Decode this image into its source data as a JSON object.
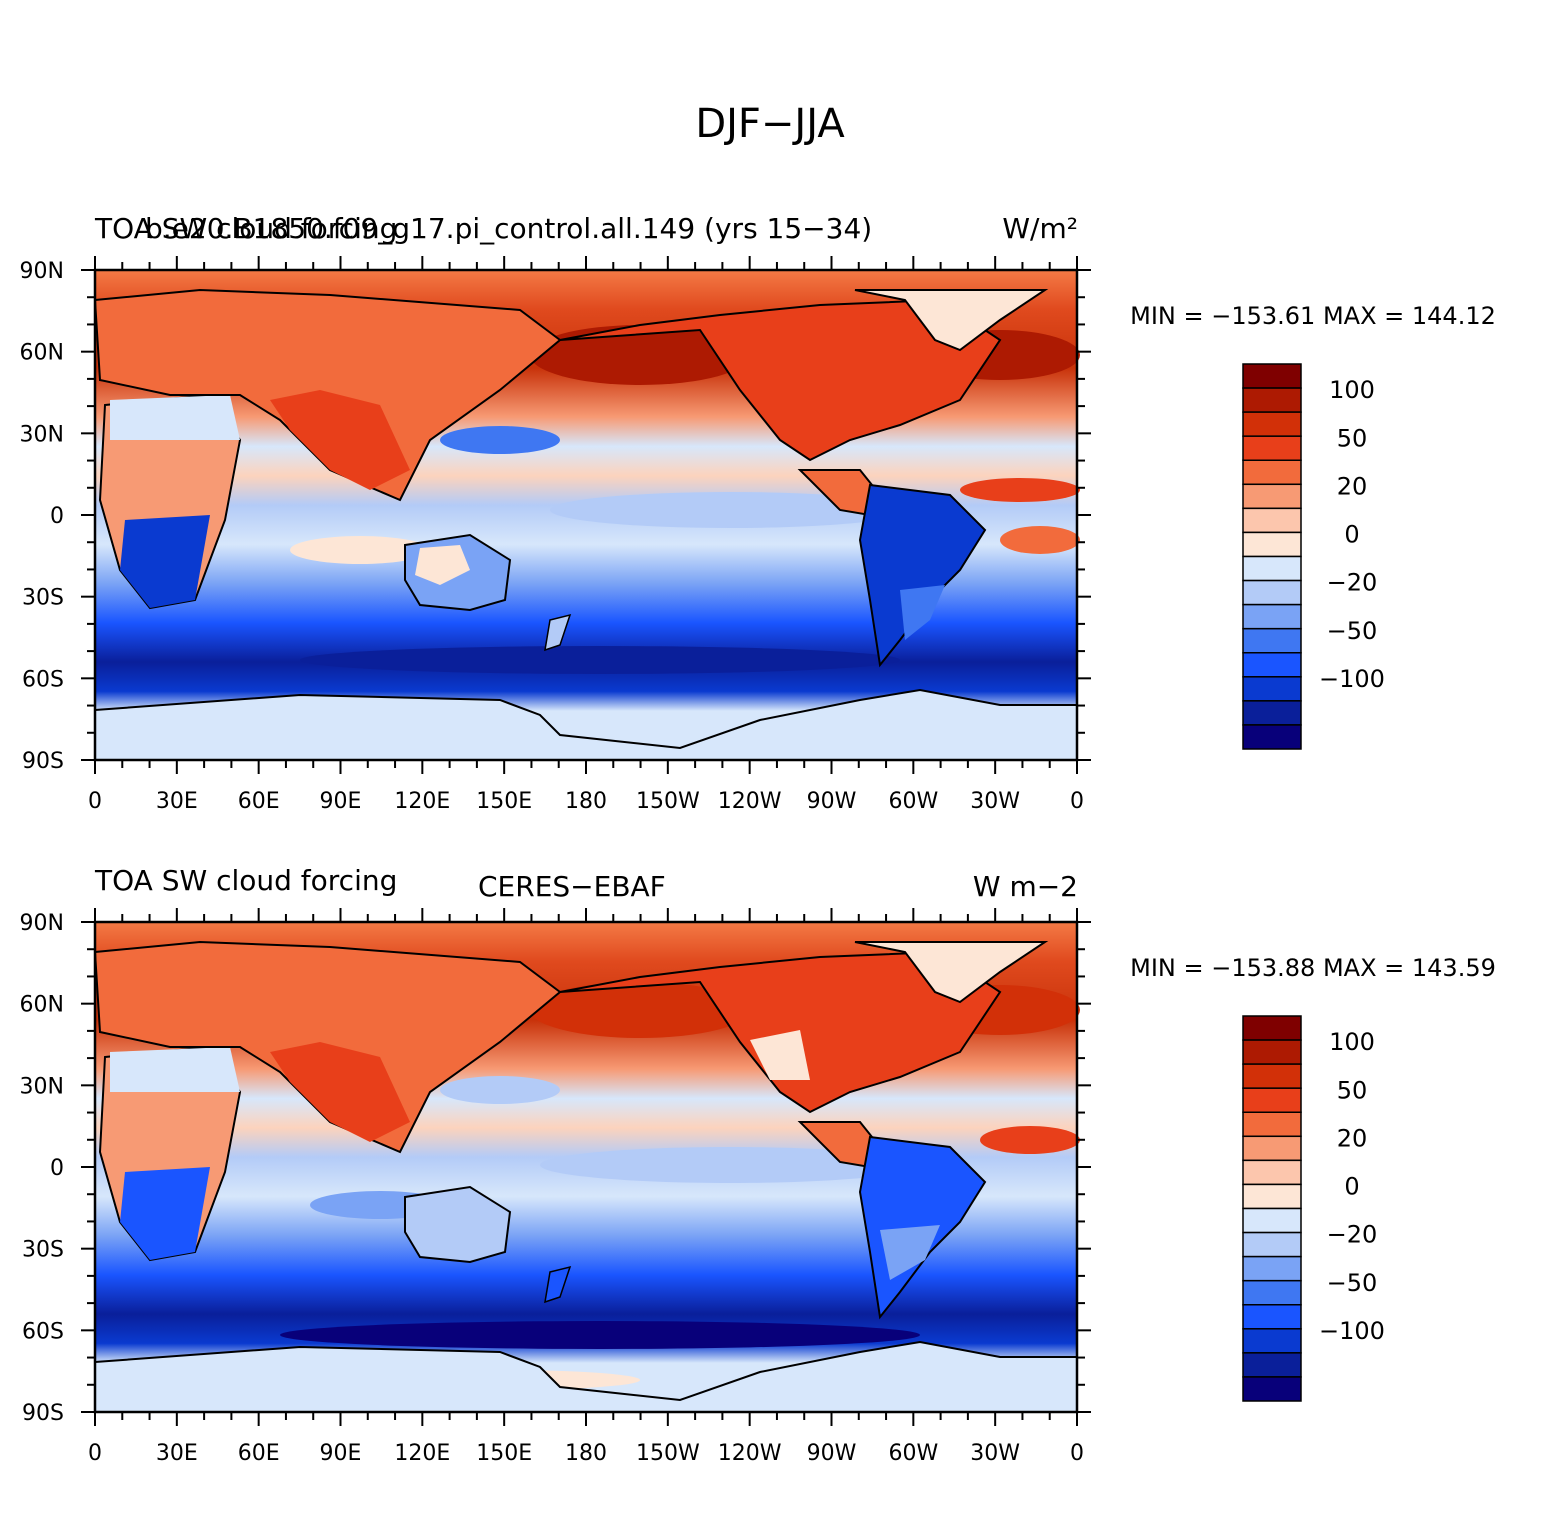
{
  "figure": {
    "main_title": "DJF−JJA"
  },
  "colors": {
    "levels": [
      "#08007a",
      "#0a1f9a",
      "#0a3ad0",
      "#1a55ff",
      "#3f77f2",
      "#7aa3f5",
      "#b3cbf7",
      "#d7e7fb",
      "#fde6d6",
      "#fcc6ad",
      "#f79a74",
      "#f26b3c",
      "#e83f1a",
      "#d23008",
      "#ad1a02",
      "#7f0000"
    ],
    "sea": "#f26b3c",
    "coast": "#000000"
  },
  "colorbar_labels": [
    "100",
    "50",
    "20",
    "0",
    "−20",
    "−50",
    "−100"
  ],
  "x_ticks": [
    "0",
    "30E",
    "60E",
    "90E",
    "120E",
    "150E",
    "180",
    "150W",
    "120W",
    "90W",
    "60W",
    "30W",
    "0"
  ],
  "y_ticks": [
    "90N",
    "60N",
    "30N",
    "0",
    "30S",
    "60S",
    "90S"
  ],
  "panels": [
    {
      "left_title": "TOA SW cloud forcing",
      "center_title": "b.e20.B1850.f09_g17.pi_control.all.149 (yrs 15−34)",
      "right_title": "W/m²",
      "stats": "MIN = −153.61  MAX = 144.12"
    },
    {
      "left_title": "TOA SW cloud forcing",
      "center_title": "CERES−EBAF",
      "right_title": "W m−2",
      "stats": "MIN = −153.88  MAX = 143.59"
    }
  ]
}
